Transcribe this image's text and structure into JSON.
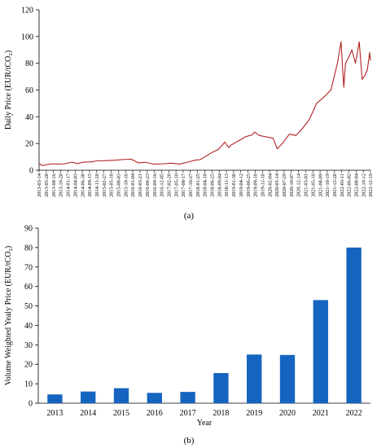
{
  "chart_data": [
    {
      "type": "line",
      "panel_label": "(a)",
      "ylabel": "Daily Price (EUR/tCO₂)",
      "xlabel": "",
      "ylim": [
        0,
        120
      ],
      "yticks": [
        0,
        20,
        40,
        60,
        80,
        100,
        120
      ],
      "grid": false,
      "line_color": "#b22222",
      "x_tick_labels": [
        "2013-03-14",
        "2013-05-28",
        "2013-08-16",
        "2013-10-28",
        "2014-01-17",
        "2014-04-03",
        "2014-06-30",
        "2014-09-15",
        "2014-11-28",
        "2015-02-27",
        "2015-05-18",
        "2015-08-03",
        "2015-10-16",
        "2016-01-04",
        "2016-03-21",
        "2016-06-23",
        "2016-09-16",
        "2016-12-05",
        "2017-02-20",
        "2017-05-10",
        "2017-08-17",
        "2017-10-27",
        "2018-01-25",
        "2018-04-10",
        "2018-06-25",
        "2018-09-04",
        "2018-11-13",
        "2019-01-30",
        "2019-04-12",
        "2019-06-25",
        "2019-09-10",
        "2019-11-18",
        "2020-02-04",
        "2020-05-14",
        "2020-07-29",
        "2020-10-07",
        "2020-12-14",
        "2021-03-01",
        "2021-05-18",
        "2021-08-09",
        "2021-10-19",
        "2021-12-28",
        "2022-03-11",
        "2022-06-02",
        "2022-08-04",
        "2022-10-12",
        "2022-12-19"
      ],
      "series": [
        {
          "values": [
            [
              "2013-03-14",
              5.0
            ],
            [
              "2013-04-20",
              3.5
            ],
            [
              "2013-06-01",
              4.2
            ],
            [
              "2013-08-01",
              4.8
            ],
            [
              "2013-10-01",
              4.6
            ],
            [
              "2013-12-15",
              4.8
            ],
            [
              "2014-03-01",
              6.0
            ],
            [
              "2014-05-01",
              5.0
            ],
            [
              "2014-07-01",
              6.0
            ],
            [
              "2014-09-15",
              6.2
            ],
            [
              "2014-12-01",
              7.0
            ],
            [
              "2015-03-01",
              7.2
            ],
            [
              "2015-06-01",
              7.5
            ],
            [
              "2015-09-01",
              8.0
            ],
            [
              "2015-12-01",
              8.3
            ],
            [
              "2016-02-15",
              5.5
            ],
            [
              "2016-05-01",
              6.0
            ],
            [
              "2016-08-01",
              4.5
            ],
            [
              "2016-11-01",
              4.8
            ],
            [
              "2017-02-01",
              5.3
            ],
            [
              "2017-05-01",
              4.6
            ],
            [
              "2017-08-01",
              6.0
            ],
            [
              "2017-10-15",
              7.5
            ],
            [
              "2017-12-15",
              8.0
            ],
            [
              "2018-02-01",
              10.0
            ],
            [
              "2018-04-10",
              13.0
            ],
            [
              "2018-06-25",
              15.5
            ],
            [
              "2018-09-04",
              21.0
            ],
            [
              "2018-10-15",
              17.0
            ],
            [
              "2018-11-13",
              19.0
            ],
            [
              "2019-01-30",
              22.0
            ],
            [
              "2019-04-12",
              25.0
            ],
            [
              "2019-06-25",
              26.5
            ],
            [
              "2019-07-20",
              28.5
            ],
            [
              "2019-09-10",
              26.0
            ],
            [
              "2019-11-18",
              25.0
            ],
            [
              "2020-02-04",
              24.0
            ],
            [
              "2020-03-20",
              16.0
            ],
            [
              "2020-05-14",
              20.0
            ],
            [
              "2020-07-29",
              27.0
            ],
            [
              "2020-10-07",
              26.0
            ],
            [
              "2020-12-14",
              31.0
            ],
            [
              "2021-03-01",
              38.0
            ],
            [
              "2021-05-18",
              50.0
            ],
            [
              "2021-08-09",
              55.0
            ],
            [
              "2021-10-19",
              60.0
            ],
            [
              "2021-12-28",
              80.0
            ],
            [
              "2022-02-05",
              96.0
            ],
            [
              "2022-03-07",
              62.0
            ],
            [
              "2022-03-25",
              80.0
            ],
            [
              "2022-05-01",
              85.0
            ],
            [
              "2022-06-02",
              90.0
            ],
            [
              "2022-07-10",
              80.0
            ],
            [
              "2022-08-20",
              96.0
            ],
            [
              "2022-09-20",
              68.0
            ],
            [
              "2022-10-12",
              70.0
            ],
            [
              "2022-11-15",
              75.0
            ],
            [
              "2022-12-10",
              88.0
            ],
            [
              "2022-12-19",
              82.0
            ]
          ]
        }
      ]
    },
    {
      "type": "bar",
      "panel_label": "(b)",
      "xlabel": "Year",
      "ylabel": "Volume Weighted Yealy Price (EUR/tCO₂)",
      "ylim": [
        0,
        90
      ],
      "yticks": [
        0,
        10,
        20,
        30,
        40,
        50,
        60,
        70,
        80,
        90
      ],
      "grid": false,
      "bar_color": "#1565c0",
      "categories": [
        "2013",
        "2014",
        "2015",
        "2016",
        "2017",
        "2018",
        "2019",
        "2020",
        "2021",
        "2022"
      ],
      "values": [
        4.5,
        6.0,
        7.7,
        5.3,
        5.8,
        15.5,
        25.0,
        24.8,
        53.0,
        80.0
      ]
    }
  ]
}
